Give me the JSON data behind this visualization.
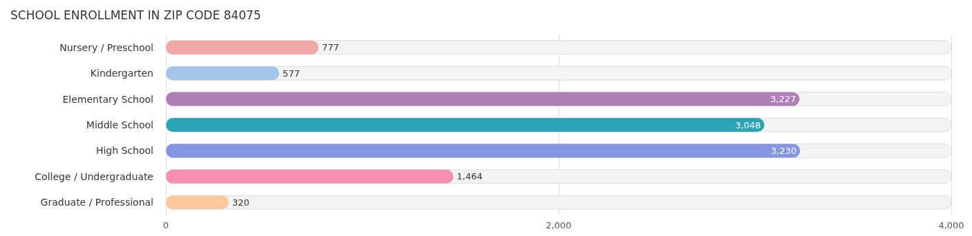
{
  "chart_data": {
    "type": "bar",
    "orientation": "horizontal",
    "title": "SCHOOL ENROLLMENT IN ZIP CODE 84075",
    "categories": [
      "Nursery / Preschool",
      "Kindergarten",
      "Elementary School",
      "Middle School",
      "High School",
      "College / Undergraduate",
      "Graduate / Professional"
    ],
    "values": [
      777,
      577,
      3227,
      3048,
      3230,
      1464,
      320
    ],
    "colors": [
      "#f2a7a7",
      "#a5c5ea",
      "#b07fb8",
      "#2ba5b6",
      "#8595e0",
      "#f590b2",
      "#fbc99b"
    ],
    "value_labels": [
      "777",
      "577",
      "3,227",
      "3,048",
      "3,230",
      "1,464",
      "320"
    ],
    "xlim": [
      0,
      4000
    ],
    "xticks": [
      0,
      {
        "value": 2000,
        "label": "2,000"
      },
      {
        "value": 4000,
        "label": "4,000"
      }
    ],
    "grid": "x"
  }
}
